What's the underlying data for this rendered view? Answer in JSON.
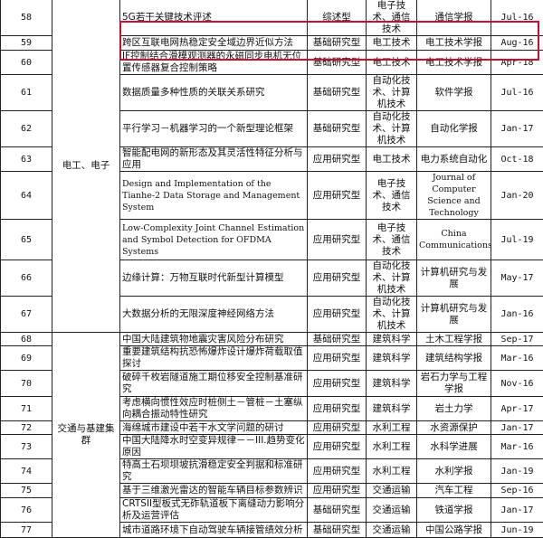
{
  "groups": [
    {
      "label": "电工、电子"
    },
    {
      "label": "交通与基建集群"
    }
  ],
  "highlight_color": "#c8102e",
  "rows": [
    {
      "no": "58",
      "title": "5G若干关键技术评述",
      "type": "综述型",
      "field": "电子技术、通信技术",
      "journal": "通信学报",
      "date": "Jul-16"
    },
    {
      "no": "59",
      "title": "跨区互联电网热稳定安全域边界近似方法",
      "type": "基础研究型",
      "field": "电工技术",
      "journal": "电工技术学报",
      "date": "Aug-16"
    },
    {
      "no": "60",
      "title": "IF控制结合滑模观测器的永磁同步电机无位置传感器复合控制策略",
      "type": "基础研究型",
      "field": "电工技术",
      "journal": "电工技术学报",
      "date": "Apr-18"
    },
    {
      "no": "61",
      "title": "数据质量多种性质的关联关系研究",
      "type": "基础研究型",
      "field": "自动化技术、计算机技术",
      "journal": "软件学报",
      "date": "Jul-16"
    },
    {
      "no": "62",
      "title": "平行学习－机器学习的一个新型理论框架",
      "type": "基础研究型",
      "field": "自动化技术、计算机技术",
      "journal": "自动化学报",
      "date": "Jan-17"
    },
    {
      "no": "63",
      "title": "智能配电网的新形态及其灵活性特征分析与应用",
      "type": "应用研究型",
      "field": "电工技术",
      "journal": "电力系统自动化",
      "date": "Oct-18"
    },
    {
      "no": "64",
      "title": "Design and Implementation of the Tianhe-2 Data Storage and Management System",
      "type": "应用研究型",
      "field": "电子技术、通信技术",
      "journal": "Journal of Computer Science and Technology",
      "date": "Jan-20"
    },
    {
      "no": "65",
      "title": "Low-Complexity Joint Channel Estimation and Symbol Detection for OFDMA Systems",
      "type": "应用研究型",
      "field": "电子技术、通信技术",
      "journal": "China Communications",
      "date": "Jul-19"
    },
    {
      "no": "66",
      "title": "边缘计算：万物互联时代新型计算模型",
      "type": "应用研究型",
      "field": "自动化技术、计算机技术",
      "journal": "计算机研究与发展",
      "date": "May-17"
    },
    {
      "no": "67",
      "title": "大数据分析的无限深度神经网络方法",
      "type": "应用研究型",
      "field": "自动化技术、计算机技术",
      "journal": "计算机研究与发展",
      "date": "Jan-16"
    },
    {
      "no": "68",
      "title": "中国大陆建筑物地震灾害风险分布研究",
      "type": "基础研究型",
      "field": "建筑科学",
      "journal": "土木工程学报",
      "date": "Sep-17"
    },
    {
      "no": "69",
      "title": "重要建筑结构抗恐怖爆炸设计爆炸荷载取值探讨",
      "type": "应用研究型",
      "field": "建筑科学",
      "journal": "建筑结构学报",
      "date": "Mar-16"
    },
    {
      "no": "70",
      "title": "破碎千枚岩隧道施工期位移安全控制基准研究",
      "type": "应用研究型",
      "field": "建筑科学",
      "journal": "岩石力学与工程学报",
      "date": "Nov-16"
    },
    {
      "no": "71",
      "title": "考虑横向惯性效应时桩侧土－管桩－土塞纵向耦合振动特性研究",
      "type": "应用研究型",
      "field": "建筑科学",
      "journal": "岩土力学",
      "date": "Apr-17"
    },
    {
      "no": "72",
      "title": "海绵城市建设中若干水文学问题的研讨",
      "type": "应用研究型",
      "field": "水利工程",
      "journal": "水资源保护",
      "date": "Jan-17"
    },
    {
      "no": "73",
      "title": "中国大陆降水时空变异规律－－III.趋势变化原因",
      "type": "应用研究型",
      "field": "水利工程",
      "journal": "水科学进展",
      "date": "Mar-16"
    },
    {
      "no": "74",
      "title": "特高土石坝坝坡抗滑稳定安全判据和标准研究",
      "type": "应用研究型",
      "field": "水利工程",
      "journal": "水利学报",
      "date": "Jan-19"
    },
    {
      "no": "75",
      "title": "基于三维激光雷达的智能车辆目标参数辨识",
      "type": "应用研究型",
      "field": "交通运输",
      "journal": "汽车工程",
      "date": "Sep-16"
    },
    {
      "no": "76",
      "title": "CRTSII型板式无砟轨道板下离缝动力影响分析及运营评估",
      "type": "基础研究型",
      "field": "交通运输",
      "journal": "铁道学报",
      "date": "Jan-17"
    },
    {
      "no": "77",
      "title": "城市道路环境下自动驾驶车辆接管绩效分析",
      "type": "基础研究型",
      "field": "交通运输",
      "journal": "中国公路学报",
      "date": "Jun-19"
    }
  ]
}
